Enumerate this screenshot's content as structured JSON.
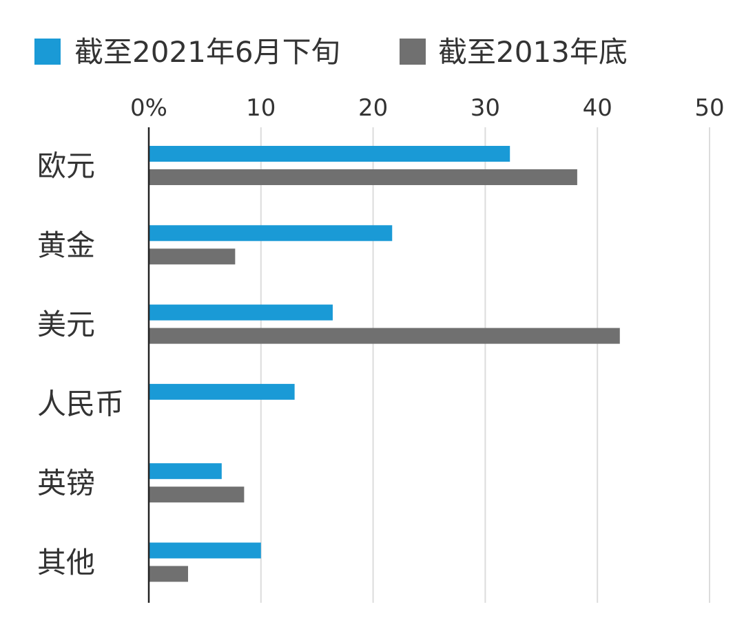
{
  "chart_data": {
    "type": "bar",
    "orientation": "horizontal",
    "categories": [
      "欧元",
      "黄金",
      "美元",
      "人民币",
      "英镑",
      "其他"
    ],
    "series": [
      {
        "name": "截至2021年6月下旬",
        "color": "#1a9ad6",
        "values": [
          32.2,
          21.7,
          16.4,
          13.0,
          6.5,
          10.0
        ]
      },
      {
        "name": "截至2013年底",
        "color": "#707070",
        "values": [
          38.2,
          7.7,
          42.0,
          null,
          8.5,
          3.5
        ]
      }
    ],
    "x_ticks": [
      "0%",
      "10",
      "20",
      "30",
      "40",
      "50"
    ],
    "x_tick_values": [
      0,
      10,
      20,
      30,
      40,
      50
    ],
    "xlim": [
      0,
      50
    ],
    "xaxis_position": "top",
    "grid": true,
    "legend_position": "top-left"
  }
}
